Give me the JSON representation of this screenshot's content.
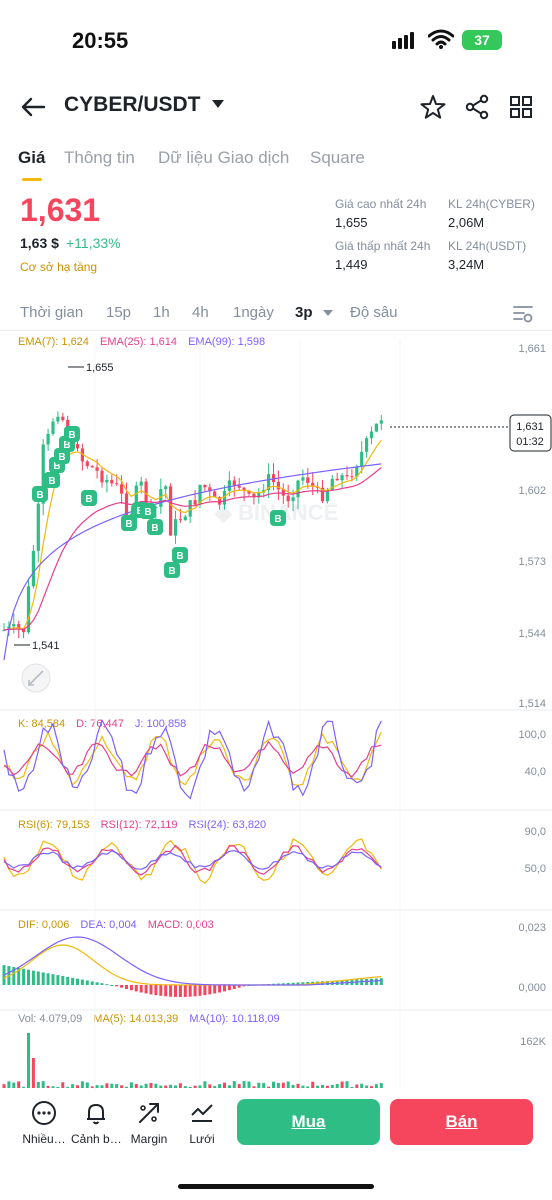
{
  "status_bar": {
    "time": "20:55",
    "battery": "37"
  },
  "header": {
    "pair": "CYBER/USDT"
  },
  "tabs": [
    "Giá",
    "Thông tin",
    "Dữ liệu Giao dịch",
    "Square"
  ],
  "price": {
    "last": "1,631",
    "usd": "1,63 $",
    "change": "+11,33%",
    "tag": "Cơ sở hạ tầng",
    "high_label": "Giá cao nhất 24h",
    "high": "1,655",
    "low_label": "Giá thấp nhất 24h",
    "low": "1,449",
    "vol_base_label": "KL 24h(CYBER)",
    "vol_base": "2,06M",
    "vol_quote_label": "KL 24h(USDT)",
    "vol_quote": "3,24M"
  },
  "intervals": {
    "items": [
      "Thời gian",
      "15p",
      "1h",
      "4h",
      "1ngày",
      "3p",
      "Độ sâu"
    ],
    "active": "3p"
  },
  "indicators": {
    "ema": [
      "EMA(7): 1,624",
      "EMA(25): 1,614",
      "EMA(99): 1,598"
    ],
    "kdj": [
      "K: 84,584",
      "D: 76,447",
      "J: 100,858"
    ],
    "rsi": [
      "RSI(6): 79,153",
      "RSI(12): 72,119",
      "RSI(24): 63,820"
    ],
    "macd": [
      "DIF: 0,006",
      "DEA: 0,004",
      "MACD: 0,003"
    ],
    "vol": [
      "Vol: 4.079,09",
      "MA(5): 14.013,39",
      "MA(10): 10.118,09"
    ]
  },
  "chart_data": {
    "type": "candlestick",
    "price_axis": [
      "1,661",
      "1,631",
      "1,602",
      "1,573",
      "1,544",
      "1,514"
    ],
    "price_axis_label_positions_note": "",
    "ylim": [
      1.514,
      1.661
    ],
    "high_marker": "1,655",
    "low_marker": "1,541",
    "last_price_label": "1,631",
    "countdown": "01:32",
    "kdj_axis": [
      "100,0",
      "40,0"
    ],
    "rsi_axis": [
      "90,0",
      "50,0"
    ],
    "macd_axis": [
      "0,023",
      "0,000"
    ],
    "vol_axis": [
      "162K"
    ],
    "buy_marker_label": "B",
    "colors": {
      "up": "#2ebd85",
      "down": "#f6465d",
      "ema7": "#f0b90b",
      "ema25": "#e83e8c",
      "ema99": "#7b61ff"
    }
  },
  "bottom_nav": {
    "items": [
      "Nhiều…",
      "Cảnh b…",
      "Margin",
      "Lưới"
    ],
    "buy": "Mua",
    "sell": "Bán"
  }
}
